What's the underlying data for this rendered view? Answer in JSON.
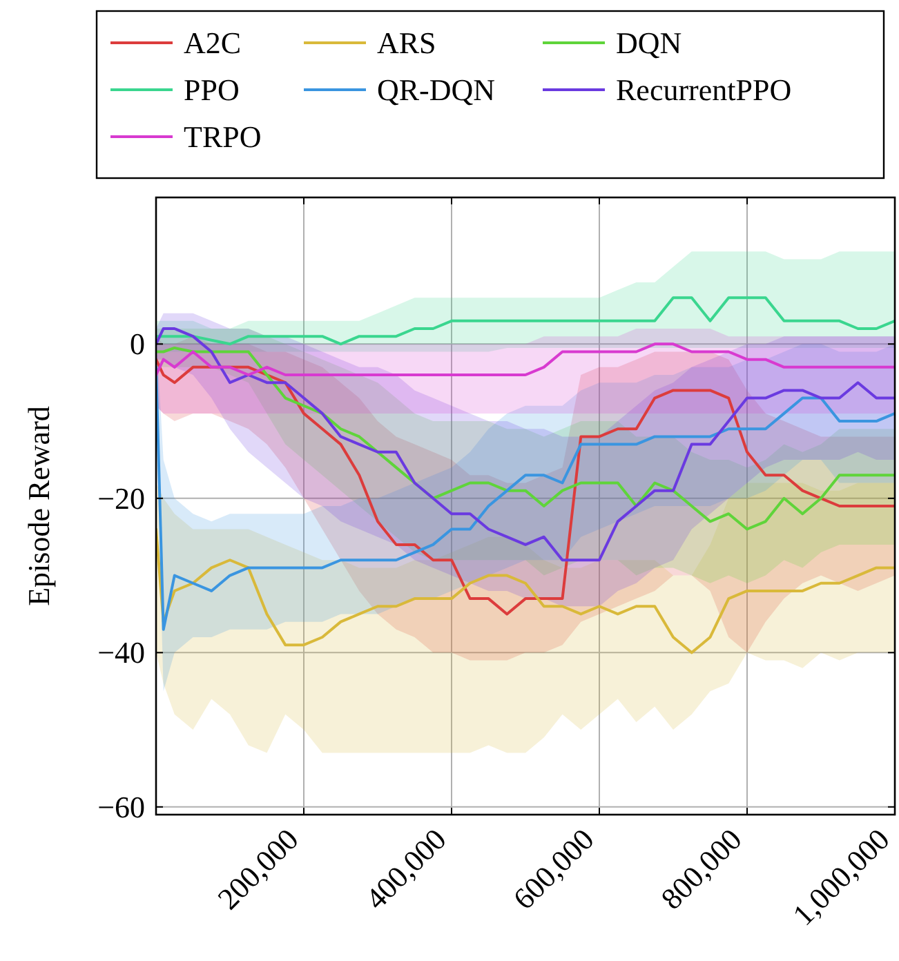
{
  "chart_data": {
    "type": "line",
    "ylabel": "Episode Reward",
    "x": [
      0,
      10000,
      25000,
      50000,
      75000,
      100000,
      125000,
      150000,
      175000,
      200000,
      225000,
      250000,
      275000,
      300000,
      325000,
      350000,
      375000,
      400000,
      425000,
      450000,
      475000,
      500000,
      525000,
      550000,
      575000,
      600000,
      625000,
      650000,
      675000,
      700000,
      725000,
      750000,
      775000,
      800000,
      825000,
      850000,
      875000,
      900000,
      925000,
      950000,
      975000,
      1000000
    ],
    "xlim": [
      0,
      1000000
    ],
    "xticks": [
      {
        "value": 200000,
        "label": "200,000"
      },
      {
        "value": 400000,
        "label": "400,000"
      },
      {
        "value": 600000,
        "label": "600,000"
      },
      {
        "value": 800000,
        "label": "800,000"
      },
      {
        "value": 1000000,
        "label": "1,000,000"
      }
    ],
    "ylim": [
      -61,
      19
    ],
    "yticks": [
      0,
      {
        "value": -20,
        "label": "−20"
      },
      {
        "value": -40,
        "label": "−40"
      },
      {
        "value": -60,
        "label": "−60"
      }
    ],
    "grid": true,
    "legend": "top",
    "line_style": "solid",
    "marker": "none",
    "series": [
      {
        "name": "A2C",
        "color": "#dc3c3c",
        "values": [
          -2,
          -4,
          -5,
          -3,
          -3,
          -3,
          -3,
          -4,
          -5,
          -9,
          -11,
          -13,
          -17,
          -23,
          -26,
          -26,
          -28,
          -28,
          -33,
          -33,
          -35,
          -33,
          -33,
          -33,
          -12,
          -12,
          -11,
          -11,
          -7,
          -6,
          -6,
          -6,
          -7,
          -14,
          -17,
          -17,
          -19,
          -20,
          -21,
          -21,
          -21,
          -21
        ],
        "lower": [
          -8,
          -9,
          -10,
          -9,
          -9,
          -10,
          -11,
          -13,
          -16,
          -20,
          -24,
          -28,
          -32,
          -35,
          -37,
          -38,
          -40,
          -40,
          -41,
          -41,
          -41,
          -40,
          -40,
          -39,
          -36,
          -35,
          -34,
          -33,
          -32,
          -30,
          -30,
          -32,
          -38,
          -40,
          -36,
          -33,
          -31,
          -30,
          -31,
          -32,
          -31,
          -30
        ],
        "upper": [
          1,
          0,
          0,
          1,
          0,
          0,
          0,
          -1,
          -1,
          -2,
          -3,
          -5,
          -7,
          -10,
          -12,
          -13,
          -14,
          -15,
          -17,
          -17,
          -18,
          -18,
          -17,
          -16,
          -4,
          -3,
          -3,
          -2,
          -1,
          -1,
          -1,
          -1,
          -2,
          -6,
          -9,
          -10,
          -11,
          -12,
          -12,
          -12,
          -12,
          -12
        ]
      },
      {
        "name": "ARS",
        "color": "#d9b93a",
        "values": [
          -24,
          -36,
          -32,
          -31,
          -29,
          -28,
          -29,
          -35,
          -39,
          -39,
          -38,
          -36,
          -35,
          -34,
          -34,
          -33,
          -33,
          -33,
          -31,
          -30,
          -30,
          -31,
          -34,
          -34,
          -35,
          -34,
          -35,
          -34,
          -34,
          -38,
          -40,
          -38,
          -33,
          -32,
          -32,
          -32,
          -32,
          -31,
          -31,
          -30,
          -29,
          -29
        ],
        "lower": [
          -40,
          -44,
          -48,
          -50,
          -46,
          -48,
          -52,
          -53,
          -48,
          -50,
          -53,
          -53,
          -53,
          -53,
          -53,
          -53,
          -53,
          -53,
          -53,
          -52,
          -53,
          -53,
          -51,
          -48,
          -50,
          -48,
          -46,
          -49,
          -47,
          -50,
          -48,
          -45,
          -44,
          -40,
          -41,
          -41,
          -42,
          -40,
          -41,
          -40,
          -40,
          -40
        ],
        "upper": [
          -18,
          -20,
          -22,
          -24,
          -24,
          -24,
          -24,
          -25,
          -26,
          -27,
          -28,
          -28,
          -29,
          -29,
          -29,
          -28,
          -28,
          -27,
          -26,
          -25,
          -25,
          -26,
          -28,
          -29,
          -29,
          -28,
          -28,
          -28,
          -28,
          -30,
          -30,
          -26,
          -20,
          -18,
          -18,
          -18,
          -18,
          -19,
          -19,
          -18,
          -18,
          -18
        ]
      },
      {
        "name": "DQN",
        "color": "#5fd43a",
        "values": [
          -1,
          -1,
          -0.5,
          -1,
          -1,
          -1,
          -1,
          -4,
          -7,
          -8,
          -9,
          -11,
          -12,
          -14,
          -16,
          -18,
          -20,
          -19,
          -18,
          -18,
          -19,
          -19,
          -21,
          -19,
          -18,
          -18,
          -18,
          -21,
          -18,
          -19,
          -21,
          -23,
          -22,
          -24,
          -23,
          -20,
          -22,
          -20,
          -17,
          -17,
          -17,
          -17
        ],
        "lower": [
          -3,
          -3,
          -3,
          -3,
          -3,
          -4,
          -5,
          -9,
          -13,
          -15,
          -17,
          -19,
          -21,
          -23,
          -25,
          -27,
          -28,
          -28,
          -28,
          -28,
          -28,
          -28,
          -30,
          -29,
          -28,
          -28,
          -28,
          -30,
          -29,
          -29,
          -30,
          -31,
          -30,
          -31,
          -30,
          -28,
          -29,
          -27,
          -26,
          -26,
          -26,
          -26
        ],
        "upper": [
          2,
          2,
          2,
          2,
          2,
          2,
          2,
          1,
          0,
          -1,
          -2,
          -3,
          -4,
          -5,
          -7,
          -9,
          -10,
          -10,
          -10,
          -10,
          -11,
          -11,
          -12,
          -11,
          -10,
          -10,
          -10,
          -12,
          -12,
          -12,
          -14,
          -15,
          -15,
          -16,
          -15,
          -13,
          -14,
          -13,
          -11,
          -11,
          -11,
          -11
        ]
      },
      {
        "name": "PPO",
        "color": "#3ad68f",
        "values": [
          1,
          1,
          1,
          1,
          0.5,
          0,
          1,
          1,
          1,
          1,
          1,
          0,
          1,
          1,
          1,
          2,
          2,
          3,
          3,
          3,
          3,
          3,
          3,
          3,
          3,
          3,
          3,
          3,
          3,
          6,
          6,
          3,
          6,
          6,
          6,
          3,
          3,
          3,
          3,
          2,
          2,
          3
        ],
        "lower": [
          -1,
          -1,
          -1,
          -1,
          -1,
          -1,
          -1,
          -1,
          -1,
          -1,
          -1,
          -1,
          -1,
          -1,
          -1,
          -1,
          -1,
          -1,
          -1,
          -1,
          -0.5,
          -0.5,
          -0.5,
          -0.5,
          -0.5,
          -0.5,
          -0.5,
          -0.5,
          -0.5,
          -0.5,
          -0.5,
          -0.5,
          -0.5,
          -0.5,
          -0.5,
          -0.5,
          -0.5,
          -0.5,
          -0.5,
          -0.5,
          -0.5,
          -0.5
        ],
        "upper": [
          3,
          3,
          3,
          3,
          2,
          2,
          3,
          3,
          3,
          3,
          3,
          3,
          3,
          4,
          5,
          6,
          6,
          6,
          6,
          6,
          6,
          6,
          6,
          6,
          6,
          6,
          7,
          8,
          8,
          10,
          12,
          12,
          12,
          12,
          12,
          11,
          11,
          11,
          12,
          12,
          12,
          12
        ]
      },
      {
        "name": "QR-DQN",
        "color": "#3a95e0",
        "values": [
          -3,
          -37,
          -30,
          -31,
          -32,
          -30,
          -29,
          -29,
          -29,
          -29,
          -29,
          -28,
          -28,
          -28,
          -28,
          -27,
          -26,
          -24,
          -24,
          -21,
          -19,
          -17,
          -17,
          -18,
          -13,
          -13,
          -13,
          -13,
          -12,
          -12,
          -12,
          -12,
          -11,
          -11,
          -11,
          -9,
          -7,
          -7,
          -10,
          -10,
          -10,
          -9
        ],
        "lower": [
          -8,
          -45,
          -40,
          -38,
          -38,
          -37,
          -37,
          -37,
          -36,
          -36,
          -36,
          -35,
          -35,
          -35,
          -34,
          -33,
          -33,
          -32,
          -31,
          -30,
          -29,
          -28,
          -28,
          -28,
          -25,
          -24,
          -23,
          -22,
          -21,
          -21,
          -21,
          -21,
          -20,
          -20,
          -19,
          -17,
          -15,
          -15,
          -18,
          -18,
          -18,
          -18
        ],
        "upper": [
          2,
          -15,
          -20,
          -22,
          -23,
          -22,
          -22,
          -22,
          -22,
          -22,
          -21,
          -21,
          -20,
          -20,
          -19,
          -18,
          -17,
          -16,
          -14,
          -11,
          -9,
          -8,
          -8,
          -8,
          -6,
          -5,
          -5,
          -5,
          -4,
          -4,
          -3,
          -3,
          -3,
          -2,
          -2,
          -1,
          0,
          0,
          -1,
          -1,
          -1,
          0
        ]
      },
      {
        "name": "RecurrentPPO",
        "color": "#6a3ae0",
        "values": [
          0,
          2,
          2,
          1,
          -1,
          -5,
          -4,
          -5,
          -5,
          -7,
          -9,
          -12,
          -13,
          -14,
          -14,
          -18,
          -20,
          -22,
          -22,
          -24,
          -25,
          -26,
          -25,
          -28,
          -28,
          -28,
          -23,
          -21,
          -19,
          -19,
          -13,
          -13,
          -10,
          -7,
          -7,
          -6,
          -6,
          -7,
          -7,
          -5,
          -7,
          -7
        ],
        "lower": [
          -2,
          -2,
          -3,
          -4,
          -7,
          -11,
          -14,
          -16,
          -18,
          -20,
          -21,
          -23,
          -24,
          -25,
          -26,
          -28,
          -29,
          -30,
          -31,
          -32,
          -32,
          -33,
          -33,
          -34,
          -34,
          -34,
          -32,
          -31,
          -29,
          -28,
          -24,
          -22,
          -20,
          -18,
          -16,
          -15,
          -15,
          -15,
          -15,
          -14,
          -15,
          -15
        ],
        "upper": [
          2,
          4,
          4,
          4,
          3,
          2,
          2,
          1,
          1,
          0,
          -1,
          -2,
          -3,
          -3,
          -4,
          -6,
          -7,
          -8,
          -9,
          -10,
          -10,
          -11,
          -11,
          -12,
          -12,
          -12,
          -10,
          -8,
          -6,
          -5,
          -3,
          -2,
          -1,
          0,
          0,
          1,
          1,
          1,
          1,
          1,
          1,
          1
        ]
      },
      {
        "name": "TRPO",
        "color": "#d83ad0",
        "values": [
          -4,
          -2,
          -3,
          -1,
          -3,
          -3,
          -4,
          -3,
          -4,
          -4,
          -4,
          -4,
          -4,
          -4,
          -4,
          -4,
          -4,
          -4,
          -4,
          -4,
          -4,
          -4,
          -3,
          -1,
          -1,
          -1,
          -1,
          -1,
          0,
          0,
          -1,
          -1,
          -1,
          -2,
          -2,
          -3,
          -3,
          -3,
          -3,
          -3,
          -3,
          -3
        ],
        "lower": [
          -8,
          -9,
          -9,
          -9,
          -9,
          -9,
          -9,
          -9,
          -9,
          -9,
          -9,
          -9,
          -9,
          -9,
          -9,
          -9,
          -9,
          -9,
          -9,
          -9,
          -9,
          -9,
          -9,
          -9,
          -9,
          -9,
          -9,
          -9,
          -9,
          -9,
          -9,
          -9,
          -9,
          -9,
          -9,
          -9,
          -9,
          -9,
          -9,
          -9,
          -9,
          -9
        ],
        "upper": [
          0,
          0,
          0,
          0,
          0,
          0,
          0,
          0,
          0,
          0,
          0,
          0,
          0,
          0,
          0,
          0,
          0,
          0,
          0,
          0,
          0,
          0,
          1,
          1,
          1,
          1,
          1,
          2,
          2,
          2,
          2,
          2,
          1,
          1,
          1,
          1,
          1,
          1,
          1,
          1,
          1,
          1
        ]
      }
    ]
  }
}
